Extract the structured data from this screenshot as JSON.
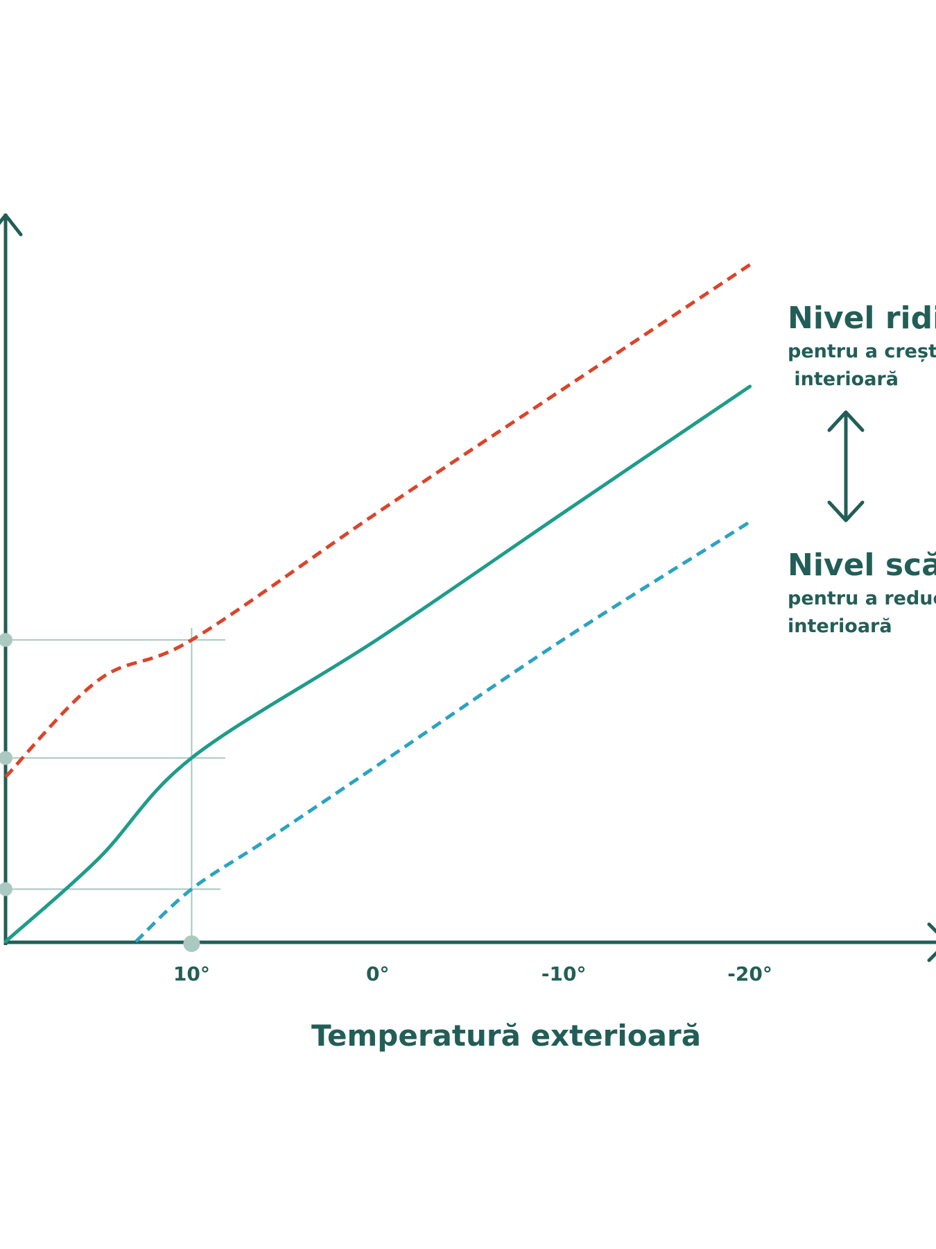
{
  "colors": {
    "axis": "#225e57",
    "guide": "#a9c6c0",
    "marker": "#a9c9c1",
    "text": "#225e57"
  },
  "chart_data": {
    "type": "line",
    "xlabel": "Temperatură exterioară",
    "ylabel": "",
    "x_ticks": [
      {
        "value": 10,
        "label": "10°"
      },
      {
        "value": 0,
        "label": "0°"
      },
      {
        "value": -10,
        "label": "-10°"
      },
      {
        "value": -20,
        "label": "-20°"
      }
    ],
    "xlim": [
      20,
      -30
    ],
    "ylim": [
      0,
      100
    ],
    "x_reversed": true,
    "grid": false,
    "series": [
      {
        "id": "high",
        "color": "#d9452b",
        "dash": true,
        "x": [
          20,
          15,
          10,
          0,
          -10,
          -20
        ],
        "y": [
          22.7,
          36,
          41.5,
          59,
          76,
          93
        ]
      },
      {
        "id": "normal",
        "color": "#1f9c8a",
        "dash": false,
        "x": [
          20,
          15,
          10,
          0,
          -10,
          -20
        ],
        "y": [
          0.1,
          11.5,
          25.3,
          41.6,
          59,
          76.3
        ]
      },
      {
        "id": "low",
        "color": "#2ba3c2",
        "dash": true,
        "x": [
          13,
          10,
          6,
          0,
          -10,
          -20
        ],
        "y": [
          0.1,
          7.3,
          14,
          24.3,
          41.6,
          57.7
        ]
      }
    ],
    "guide_markers": {
      "x": 10,
      "y": [
        41.5,
        25.3,
        7.3
      ]
    },
    "annotations": [
      {
        "id": "high",
        "title": "Nivel ridic",
        "lines": [
          "pentru a crește",
          " interioară"
        ]
      },
      {
        "id": "low",
        "title": "Nivel scă",
        "lines": [
          "pentru a reduce",
          "interioară"
        ]
      }
    ]
  }
}
